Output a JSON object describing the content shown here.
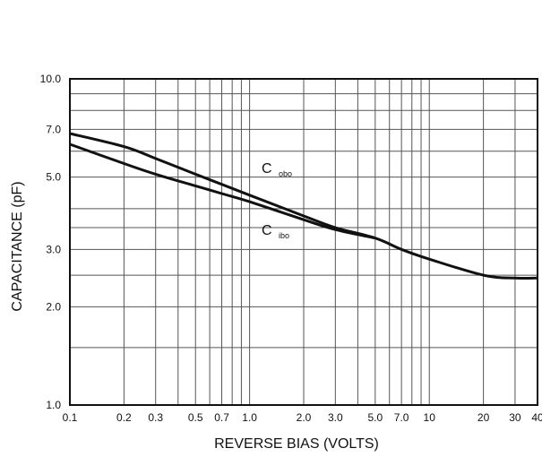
{
  "chart_data": {
    "type": "line",
    "xscale": "log",
    "yscale": "log",
    "xlabel": "REVERSE BIAS (VOLTS)",
    "ylabel": "CAPACITANCE (pF)",
    "xlim": [
      0.1,
      40
    ],
    "ylim": [
      1.0,
      10.0
    ],
    "grid": true,
    "x_ticks": [
      "0.1",
      "0.2",
      "0.3",
      "0.5",
      "0.7",
      "1.0",
      "2.0",
      "3.0",
      "5.0",
      "7.0",
      "10",
      "20",
      "30",
      "40"
    ],
    "x_tick_values": [
      0.1,
      0.2,
      0.3,
      0.5,
      0.7,
      1.0,
      2.0,
      3.0,
      5.0,
      7.0,
      10,
      20,
      30,
      40
    ],
    "y_ticks": [
      "1.0",
      "2.0",
      "3.0",
      "5.0",
      "7.0",
      "10.0"
    ],
    "y_tick_values": [
      1.0,
      2.0,
      3.0,
      5.0,
      7.0,
      10.0
    ],
    "series": [
      {
        "name": "C obo",
        "label_main": "C",
        "label_sub": "obo",
        "color": "#111111",
        "x": [
          0.1,
          0.2,
          0.3,
          0.5,
          0.7,
          1.0,
          2.0,
          3.0,
          5.0,
          7.0,
          10,
          20,
          30,
          40
        ],
        "y": [
          6.8,
          6.2,
          5.7,
          5.1,
          4.75,
          4.4,
          3.8,
          3.5,
          3.25,
          3.0,
          2.8,
          2.5,
          2.45,
          2.45
        ]
      },
      {
        "name": "C ibo",
        "label_main": "C",
        "label_sub": "ibo",
        "color": "#111111",
        "x": [
          0.1,
          0.2,
          0.3,
          0.5,
          0.7,
          1.0,
          2.0,
          3.0,
          5.0
        ],
        "y": [
          6.3,
          5.5,
          5.1,
          4.7,
          4.45,
          4.2,
          3.7,
          3.45,
          3.25
        ]
      }
    ]
  }
}
